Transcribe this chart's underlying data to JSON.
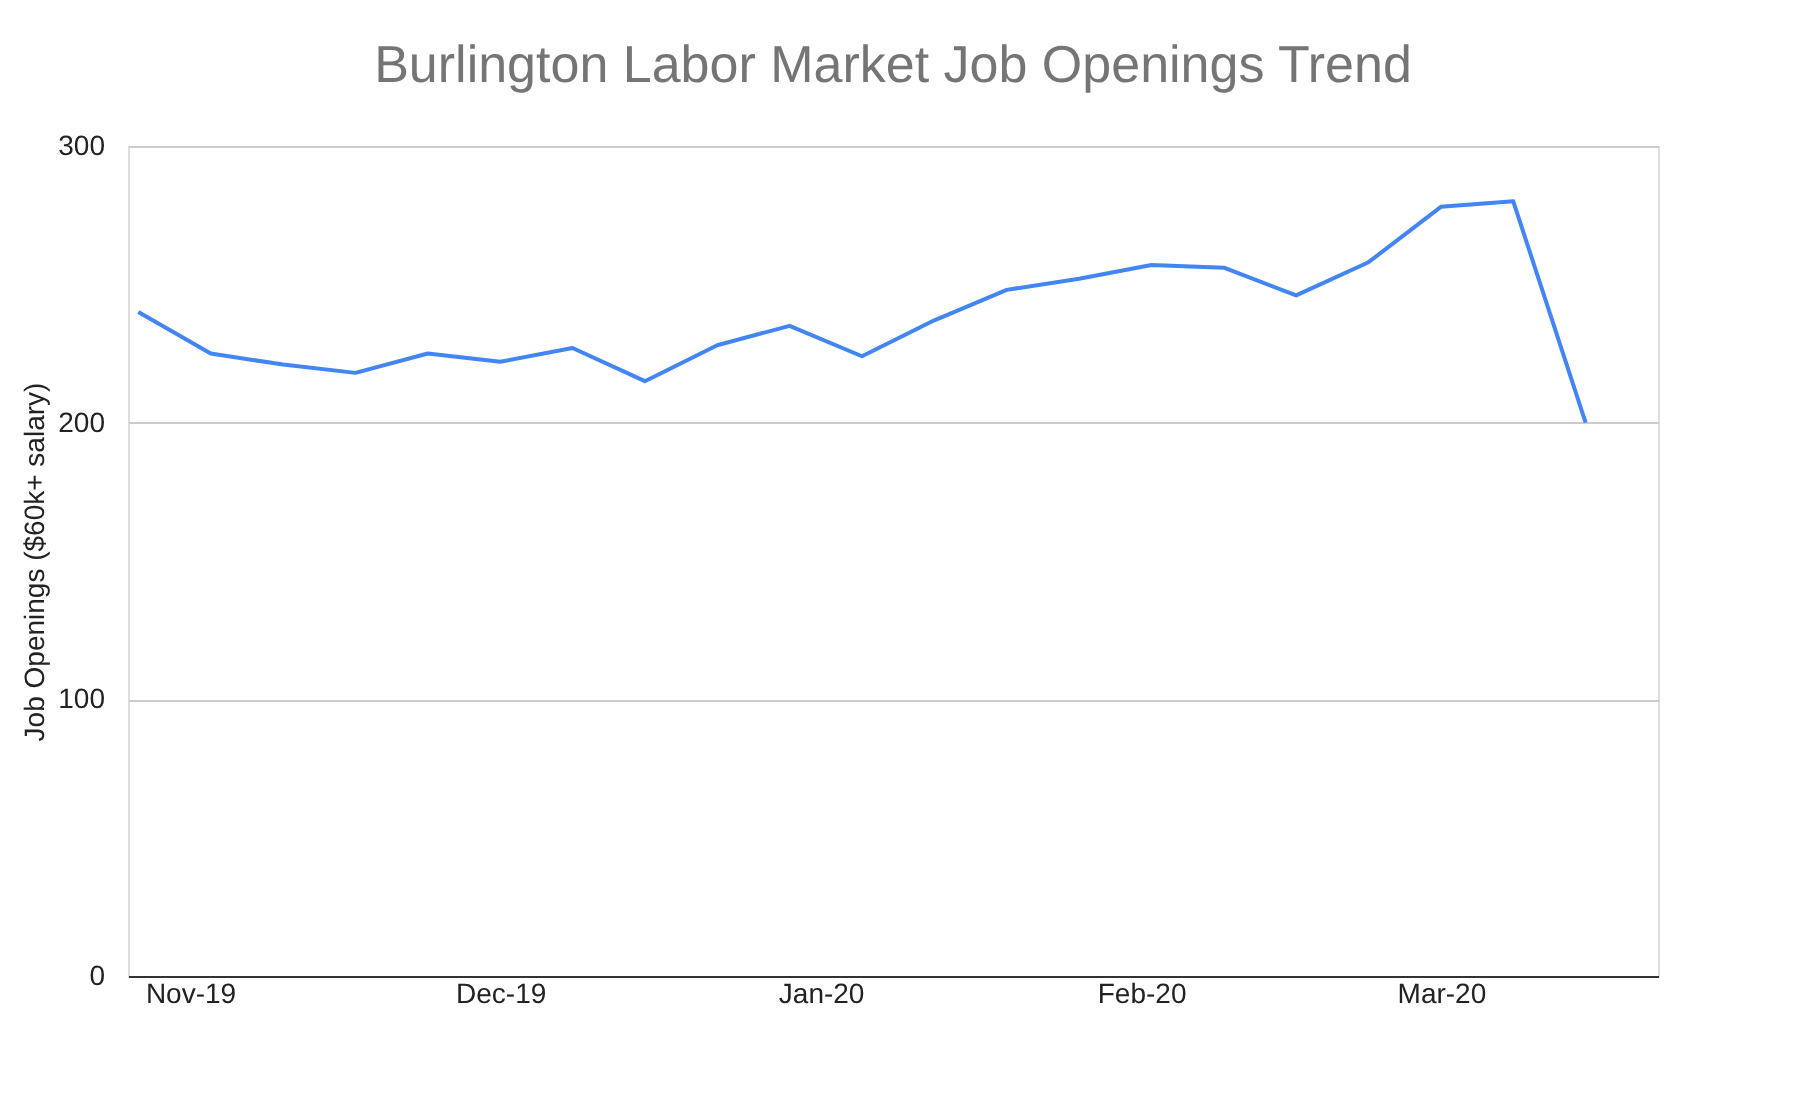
{
  "chart_data": {
    "type": "line",
    "title": "Burlington Labor Market Job Openings Trend",
    "ylabel": "Job Openings ($60k+ salary)",
    "x": [
      "2019-10-27",
      "2019-11-03",
      "2019-11-10",
      "2019-11-17",
      "2019-11-24",
      "2019-12-01",
      "2019-12-08",
      "2019-12-15",
      "2019-12-22",
      "2019-12-29",
      "2020-01-05",
      "2020-01-12",
      "2020-01-19",
      "2020-01-26",
      "2020-02-02",
      "2020-02-09",
      "2020-02-16",
      "2020-02-23",
      "2020-03-01",
      "2020-03-08",
      "2020-03-15"
    ],
    "series": [
      {
        "color": "#4285f4",
        "values": [
          240,
          225,
          221,
          218,
          225,
          222,
          227,
          215,
          228,
          235,
          224,
          237,
          248,
          252,
          257,
          256,
          246,
          258,
          278,
          280,
          200
        ]
      }
    ],
    "xlim": [
      "2019-10-26",
      "2020-03-22"
    ],
    "xticks": [
      {
        "value": "2019-11-01",
        "label": "Nov-19"
      },
      {
        "value": "2019-12-01",
        "label": "Dec-19"
      },
      {
        "value": "2020-01-01",
        "label": "Jan-20"
      },
      {
        "value": "2020-02-01",
        "label": "Feb-20"
      },
      {
        "value": "2020-03-01",
        "label": "Mar-20"
      }
    ],
    "ylim": [
      0,
      300
    ],
    "yticks": [
      0,
      100,
      200,
      300
    ],
    "grid": "y",
    "legend": false,
    "marker": "none",
    "line_style": "solid"
  }
}
